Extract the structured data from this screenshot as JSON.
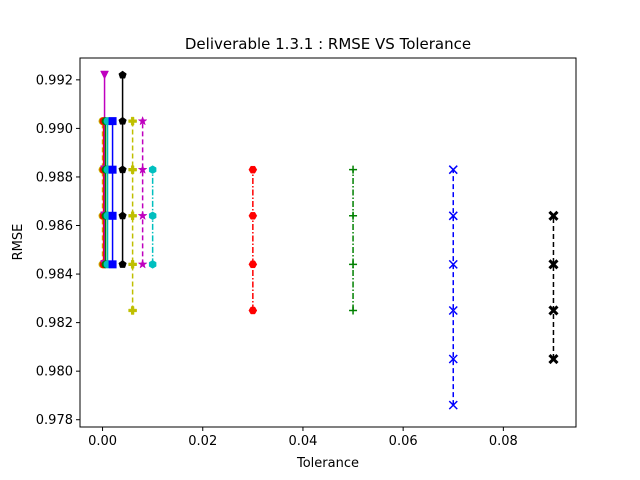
{
  "chart_data": {
    "type": "line",
    "title": "Deliverable 1.3.1 : RMSE VS Tolerance",
    "xlabel": "Tolerance",
    "ylabel": "RMSE",
    "xlim": [
      -0.0045,
      0.0945
    ],
    "ylim": [
      0.9777,
      0.9929
    ],
    "x_ticks": [
      0.0,
      0.02,
      0.04,
      0.06,
      0.08
    ],
    "x_tick_labels": [
      "0.00",
      "0.02",
      "0.04",
      "0.06",
      "0.08"
    ],
    "y_ticks": [
      0.978,
      0.98,
      0.982,
      0.984,
      0.986,
      0.988,
      0.99,
      0.992
    ],
    "y_tick_labels": [
      "0.978",
      "0.980",
      "0.982",
      "0.984",
      "0.986",
      "0.988",
      "0.990",
      "0.992"
    ],
    "grid": false,
    "legend": "none",
    "series": [
      {
        "x": 0.0,
        "y": [
          0.9844,
          0.9864,
          0.9883,
          0.9903
        ],
        "color": "#bfbf00",
        "marker": "o",
        "linestyle": "dashed"
      },
      {
        "x": 0.0002,
        "y": [
          0.9844,
          0.9864,
          0.9883,
          0.9903
        ],
        "color": "#ff0000",
        "marker": "o",
        "linestyle": "solid"
      },
      {
        "x": 0.0004,
        "y": [
          0.9844,
          0.9864,
          0.9883,
          0.9922
        ],
        "color": "#bf00bf",
        "marker": "v",
        "linestyle": "solid"
      },
      {
        "x": 0.0006,
        "y": [
          0.9844,
          0.9864,
          0.9883,
          0.9903
        ],
        "color": "#008000",
        "marker": "o",
        "linestyle": "solid"
      },
      {
        "x": 0.001,
        "y": [
          0.9844,
          0.9864,
          0.9883,
          0.9903
        ],
        "color": "#00bfbf",
        "marker": "o",
        "linestyle": "solid"
      },
      {
        "x": 0.002,
        "y": [
          0.9844,
          0.9864,
          0.9883,
          0.9903
        ],
        "color": "#0000ff",
        "marker": "s",
        "linestyle": "solid"
      },
      {
        "x": 0.004,
        "y": [
          0.9844,
          0.9864,
          0.9883,
          0.9903,
          0.9922
        ],
        "color": "#000000",
        "marker": "p",
        "linestyle": "solid"
      },
      {
        "x": 0.006,
        "y": [
          0.9825,
          0.9844,
          0.9864,
          0.9883,
          0.9903
        ],
        "color": "#bfbf00",
        "marker": "P",
        "linestyle": "dashed"
      },
      {
        "x": 0.008,
        "y": [
          0.9844,
          0.9864,
          0.9883,
          0.9903
        ],
        "color": "#bf00bf",
        "marker": "*",
        "linestyle": "dashed"
      },
      {
        "x": 0.01,
        "y": [
          0.9844,
          0.9864,
          0.9883
        ],
        "color": "#00bfbf",
        "marker": "h",
        "linestyle": "dashdot"
      },
      {
        "x": 0.03,
        "y": [
          0.9825,
          0.9844,
          0.9864,
          0.9883
        ],
        "color": "#ff0000",
        "marker": "H",
        "linestyle": "dashdot"
      },
      {
        "x": 0.05,
        "y": [
          0.9825,
          0.9844,
          0.9864,
          0.9883
        ],
        "color": "#008000",
        "marker": "+",
        "linestyle": "dashdot"
      },
      {
        "x": 0.07,
        "y": [
          0.9786,
          0.9805,
          0.9825,
          0.9844,
          0.9864,
          0.9883
        ],
        "color": "#0000ff",
        "marker": "x",
        "linestyle": "dashed"
      },
      {
        "x": 0.09,
        "y": [
          0.9805,
          0.9825,
          0.9844,
          0.9864
        ],
        "color": "#000000",
        "marker": "X",
        "linestyle": "dashed"
      }
    ]
  }
}
